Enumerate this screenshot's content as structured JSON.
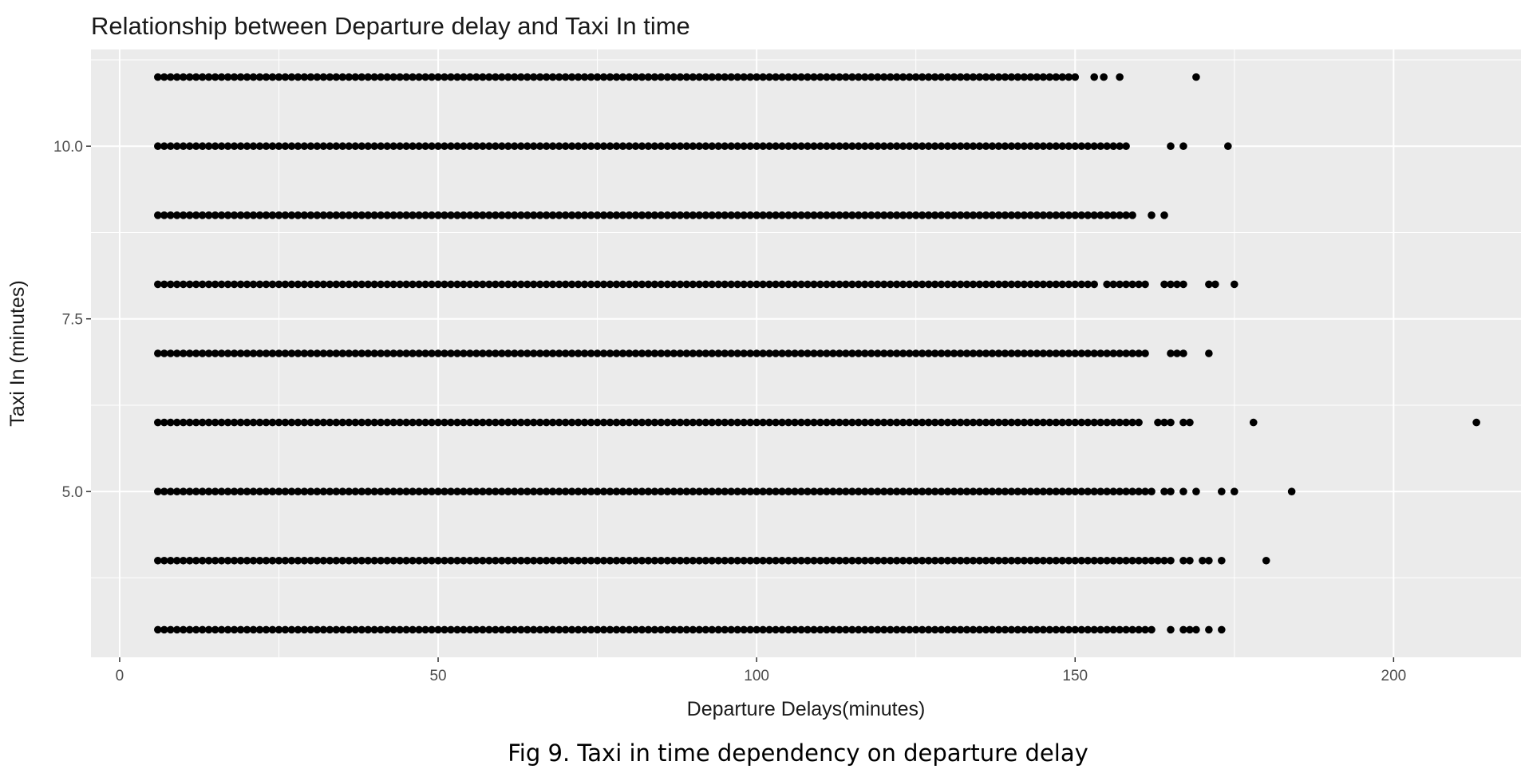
{
  "chart_data": {
    "type": "scatter",
    "title": "Relationship between Departure delay and Taxi In time",
    "xlabel": "Departure Delays(minutes)",
    "ylabel": "Taxi In (minutes)",
    "xlim": [
      -4.5,
      220
    ],
    "ylim": [
      2.6,
      11.4
    ],
    "x_ticks": [
      0,
      50,
      100,
      150,
      200
    ],
    "x_tick_labels": [
      "0",
      "50",
      "100",
      "150",
      "200"
    ],
    "y_ticks": [
      5.0,
      7.5,
      10.0
    ],
    "y_tick_labels": [
      "5.0",
      "7.5",
      "10.0"
    ],
    "grid": true,
    "panel_background": "#ebebeb",
    "grid_color": "#ffffff",
    "point_color": "#000000",
    "rows": [
      {
        "y": 11,
        "dense_from": 6,
        "dense_to": 150,
        "extra_x": [
          153,
          154.5,
          157,
          169
        ]
      },
      {
        "y": 10,
        "dense_from": 6,
        "dense_to": 157,
        "extra_x": [
          158,
          165,
          167,
          174
        ]
      },
      {
        "y": 9,
        "dense_from": 6,
        "dense_to": 159,
        "extra_x": [
          162,
          164
        ]
      },
      {
        "y": 8,
        "dense_from": 6,
        "dense_to": 153,
        "extra_x": [
          155,
          156,
          157,
          158,
          159,
          160,
          161,
          164,
          165,
          166,
          167,
          171,
          172,
          175
        ]
      },
      {
        "y": 7,
        "dense_from": 6,
        "dense_to": 160,
        "extra_x": [
          161,
          165,
          166,
          167,
          171
        ]
      },
      {
        "y": 6,
        "dense_from": 6,
        "dense_to": 160,
        "extra_x": [
          163,
          164,
          165,
          167,
          168,
          178,
          213
        ]
      },
      {
        "y": 5,
        "dense_from": 6,
        "dense_to": 162,
        "extra_x": [
          164,
          165,
          167,
          169,
          173,
          175,
          184
        ]
      },
      {
        "y": 4,
        "dense_from": 6,
        "dense_to": 165,
        "extra_x": [
          167,
          168,
          170,
          171,
          173,
          180
        ]
      },
      {
        "y": 3,
        "dense_from": 6,
        "dense_to": 161,
        "extra_x": [
          162,
          165,
          167,
          168,
          169,
          171,
          173
        ]
      }
    ]
  },
  "caption": "Fig 9. Taxi in time dependency on departure delay"
}
